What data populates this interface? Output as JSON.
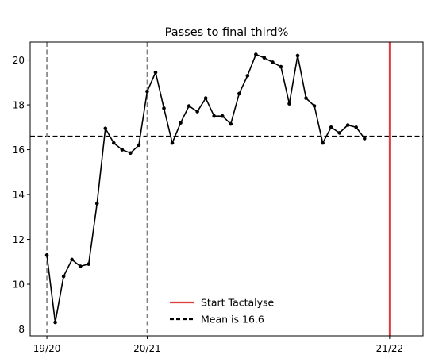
{
  "chart_data": {
    "type": "line",
    "title": "Passes to final third%",
    "xlabel": "",
    "ylabel": "",
    "xlim": [
      -2,
      45
    ],
    "ylim": [
      7.7,
      20.8
    ],
    "yticks": [
      8,
      10,
      12,
      14,
      16,
      18,
      20
    ],
    "xticks": [
      {
        "pos": 0,
        "label": "19/20"
      },
      {
        "pos": 12,
        "label": "20/21"
      },
      {
        "pos": 41,
        "label": "21/22"
      }
    ],
    "season_markers": [
      0,
      12
    ],
    "start_marker": 41,
    "mean": 16.6,
    "grid": false,
    "legend_placement": "lower-center",
    "series": [
      {
        "values": [
          11.3,
          8.3,
          10.35,
          11.1,
          10.8,
          10.9,
          13.6,
          16.95,
          16.3,
          16.0,
          15.85,
          16.2,
          18.6,
          19.45,
          17.85,
          16.3,
          17.2,
          17.95,
          17.7,
          18.3,
          17.5,
          17.5,
          17.15,
          18.5,
          19.3,
          20.25,
          20.1,
          19.9,
          19.7,
          18.05,
          20.2,
          18.3,
          17.95,
          16.3,
          17.0,
          16.75,
          17.1,
          17.0,
          16.5
        ]
      }
    ],
    "legend": [
      {
        "label": "Start Tactalyse",
        "style": "solid",
        "color": "#e0393e"
      },
      {
        "label": "Mean is 16.6",
        "style": "dashed",
        "color": "#000000"
      }
    ],
    "colors": {
      "series": "#000000",
      "season_marker": "#7f7f7f",
      "start_marker": "#e0393e",
      "mean": "#000000"
    }
  }
}
